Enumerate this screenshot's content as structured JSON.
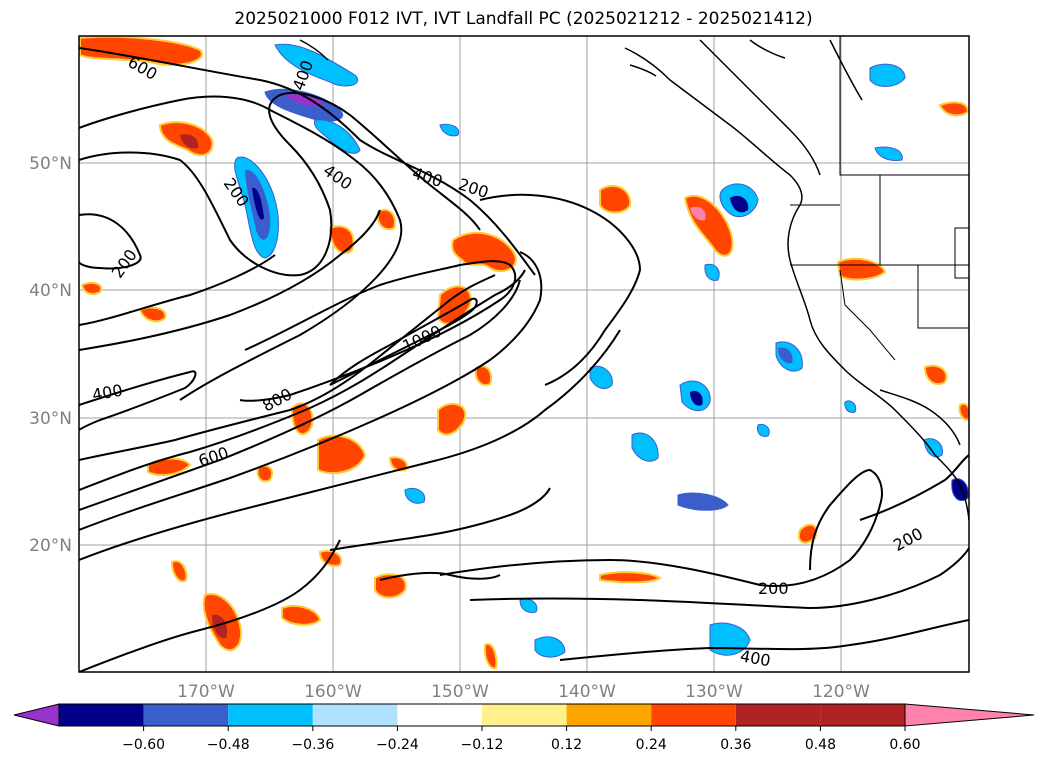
{
  "title": "2025021000 F012 IVT, IVT Landfall PC (2025021212 - 2025021412)",
  "map": {
    "lat_labels": [
      "50°N",
      "40°N",
      "30°N",
      "20°N"
    ],
    "lon_labels": [
      "170°W",
      "160°W",
      "150°W",
      "140°W",
      "130°W",
      "120°W"
    ],
    "ivt_contour_labels": [
      "600",
      "400",
      "200",
      "200",
      "400",
      "400",
      "200",
      "1000",
      "800",
      "600",
      "400",
      "200",
      "200",
      "400"
    ]
  },
  "colorbar": {
    "colors": [
      "#9932cc",
      "#00008b",
      "#3a5fcd",
      "#00bfff",
      "#b0e2ff",
      "#ffffff",
      "#fff08c",
      "#ffa500",
      "#ff4500",
      "#b22222",
      "#ff82ab"
    ],
    "tick_labels": [
      "−0.60",
      "−0.48",
      "−0.36",
      "−0.24",
      "−0.12",
      "0.12",
      "0.24",
      "0.36",
      "0.48",
      "0.60"
    ]
  }
}
